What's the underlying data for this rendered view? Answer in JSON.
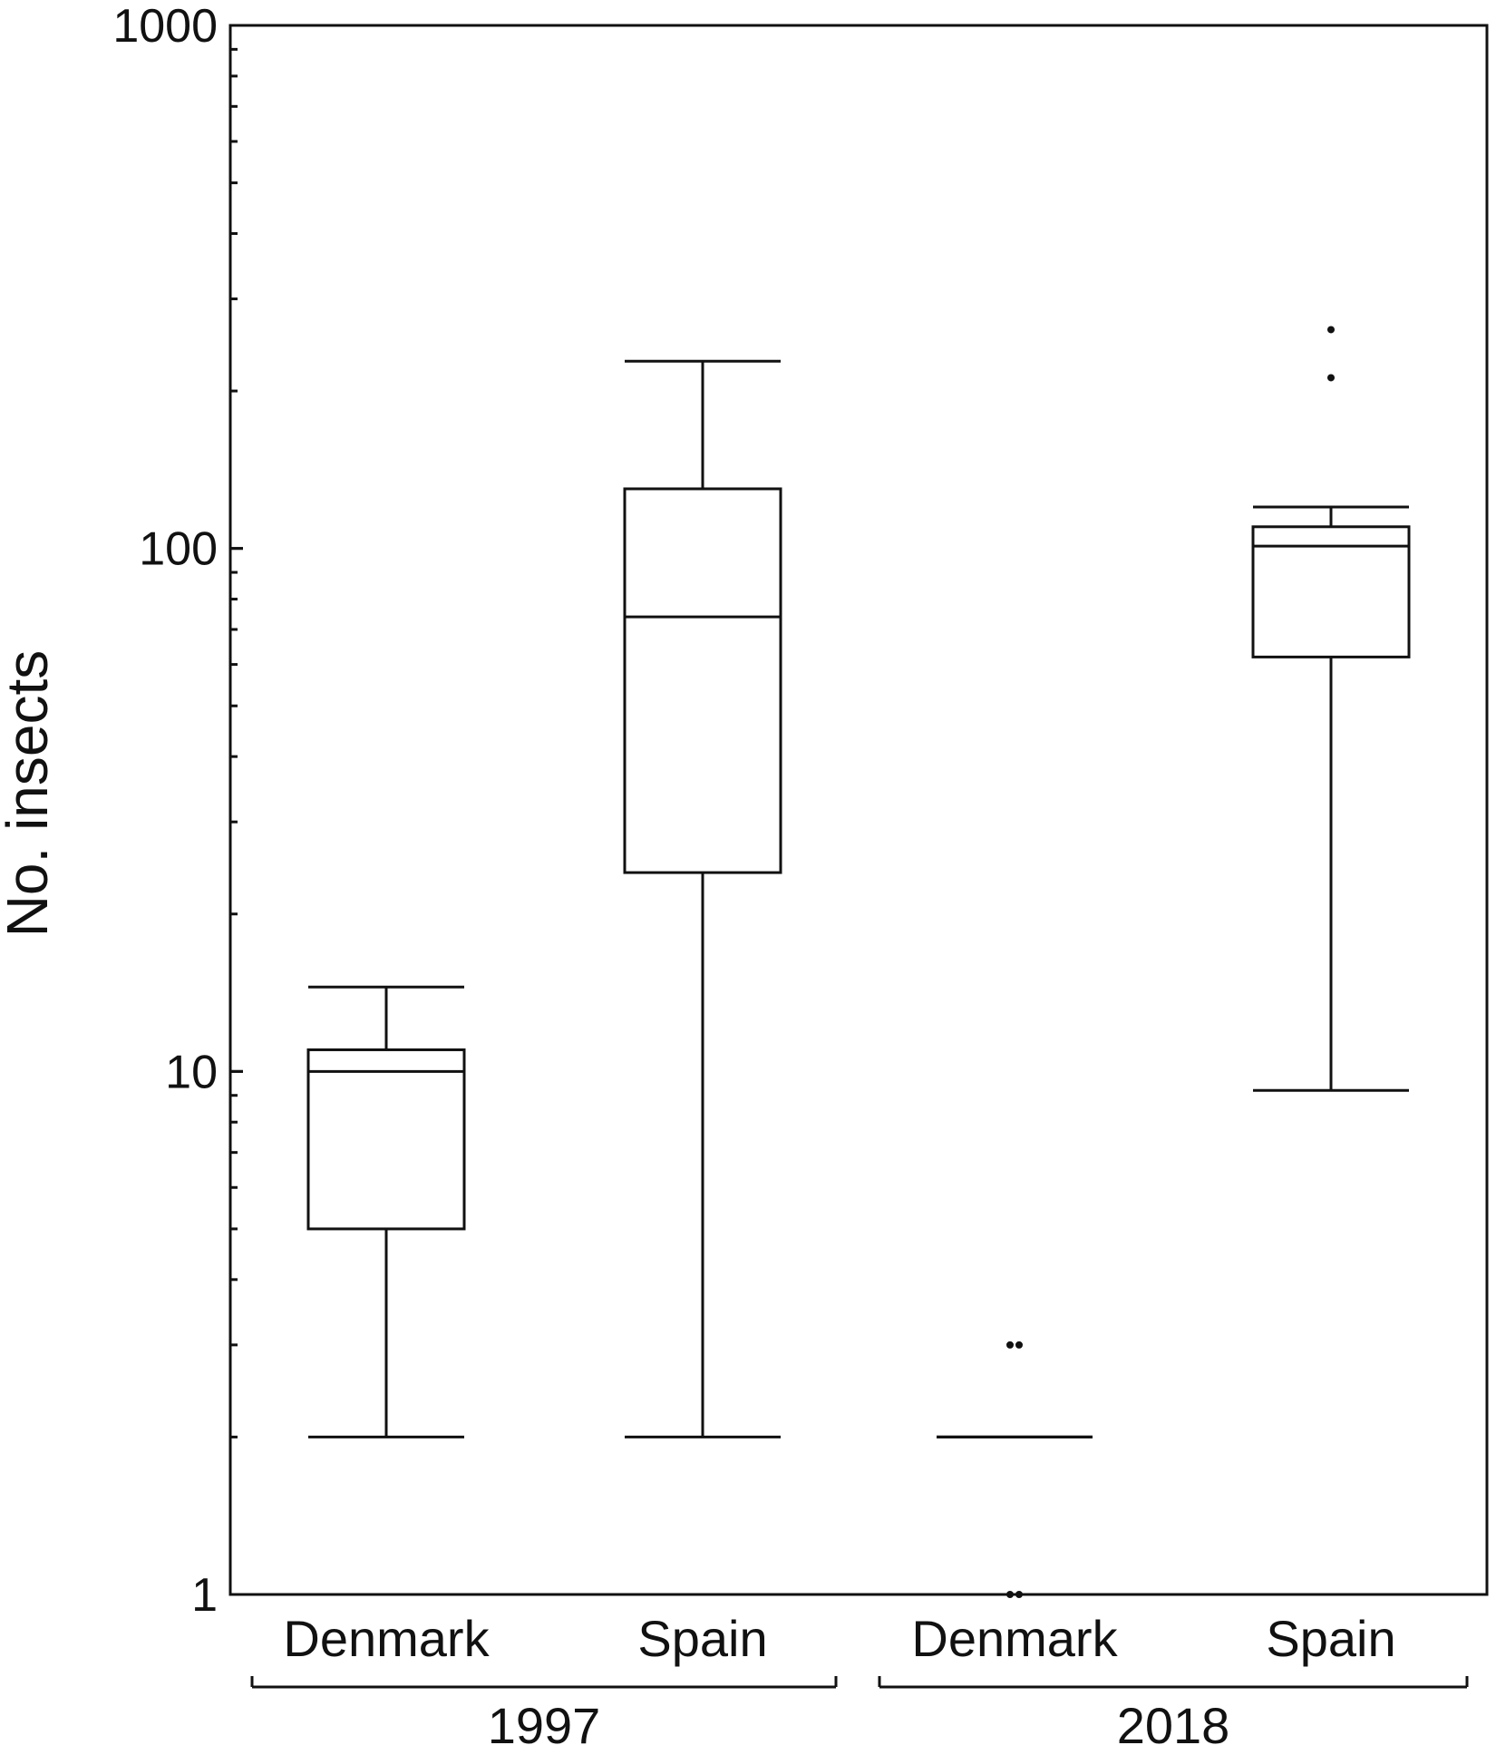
{
  "chart_data": {
    "type": "box",
    "ylabel": "No. insects",
    "yscale": "log",
    "ylim": [
      1,
      1000
    ],
    "yticks": [
      "1",
      "10",
      "100",
      "1000"
    ],
    "categories": [
      "Denmark",
      "Spain",
      "Denmark",
      "Spain"
    ],
    "groups": [
      {
        "label": "1997",
        "categories": [
          0,
          1
        ]
      },
      {
        "label": "2018",
        "categories": [
          2,
          3
        ]
      }
    ],
    "boxes": [
      {
        "category": "Denmark",
        "group": "1997",
        "whisker_low": 2,
        "q1": 5,
        "median": 10,
        "q3": 11,
        "whisker_high": 14.5,
        "outliers": []
      },
      {
        "category": "Spain",
        "group": "1997",
        "whisker_low": 2,
        "q1": 24,
        "median": 74,
        "q3": 130,
        "whisker_high": 228,
        "outliers": []
      },
      {
        "category": "Denmark",
        "group": "2018",
        "whisker_low": 2,
        "q1": 2,
        "median": 2,
        "q3": 2,
        "whisker_high": 2,
        "outliers": [
          3,
          3,
          1,
          1
        ]
      },
      {
        "category": "Spain",
        "group": "2018",
        "whisker_low": 9.2,
        "q1": 62,
        "median": 101,
        "q3": 110,
        "whisker_high": 120,
        "outliers": [
          212,
          262
        ]
      }
    ]
  }
}
